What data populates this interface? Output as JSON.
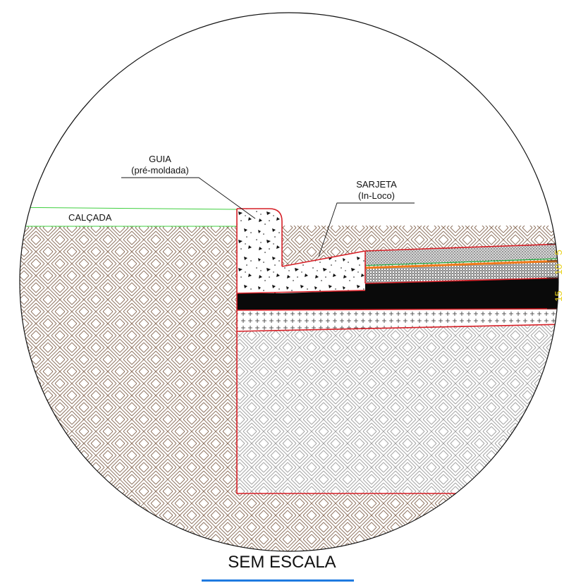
{
  "labels": {
    "guia_line1": "GUIA",
    "guia_line2": "(pré-moldada)",
    "sarjeta_line1": "SARJETA",
    "sarjeta_line2": "(In-Loco)",
    "calcada": "CALÇADA",
    "dim_top": "5",
    "dim_middle": "10",
    "dim_bottom": "15"
  },
  "caption": {
    "scale": "SEM ESCALA"
  },
  "colors": {
    "outline": "#d61f26",
    "soil_hatch": "#8a6e5a",
    "subgrade_hatch": "#9a9a9a",
    "sidewalk_line": "#3fcf3f",
    "binder_green": "#1fa83a",
    "binder_orange": "#f07a1a",
    "base_black": "#0a0a0a",
    "dimension_yellow": "#e8d21a",
    "underline_blue": "#1f7ae0"
  }
}
